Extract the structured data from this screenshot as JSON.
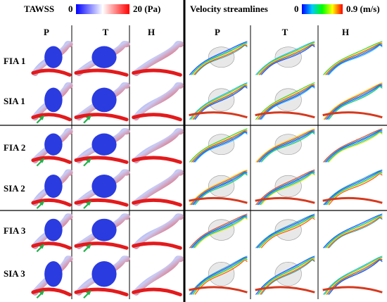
{
  "left_panel": {
    "title": "TAWSS",
    "scale_min": "0",
    "scale_max": "20 (Pa)",
    "colorbar": [
      "#0000ff",
      "#ffffff",
      "#ff0000"
    ],
    "columns": [
      "P",
      "T",
      "H"
    ]
  },
  "right_panel": {
    "title": "Velocity streamlines",
    "scale_min": "0",
    "scale_max": "0.9 (m/s)",
    "colorbar": [
      "#0000ff",
      "#00c8ff",
      "#00ff00",
      "#ffff00",
      "#ff0000"
    ],
    "columns": [
      "P",
      "T",
      "H"
    ]
  },
  "rows": [
    "FIA 1",
    "SIA 1",
    "FIA 2",
    "SIA 2",
    "FIA 3",
    "SIA 3"
  ],
  "colors": {
    "high": "#e31a1c",
    "low": "#2a3bdf",
    "arrow": "#22b14c",
    "divider": "#000000"
  },
  "icons": {
    "arrow": "green-arrow-icon"
  }
}
